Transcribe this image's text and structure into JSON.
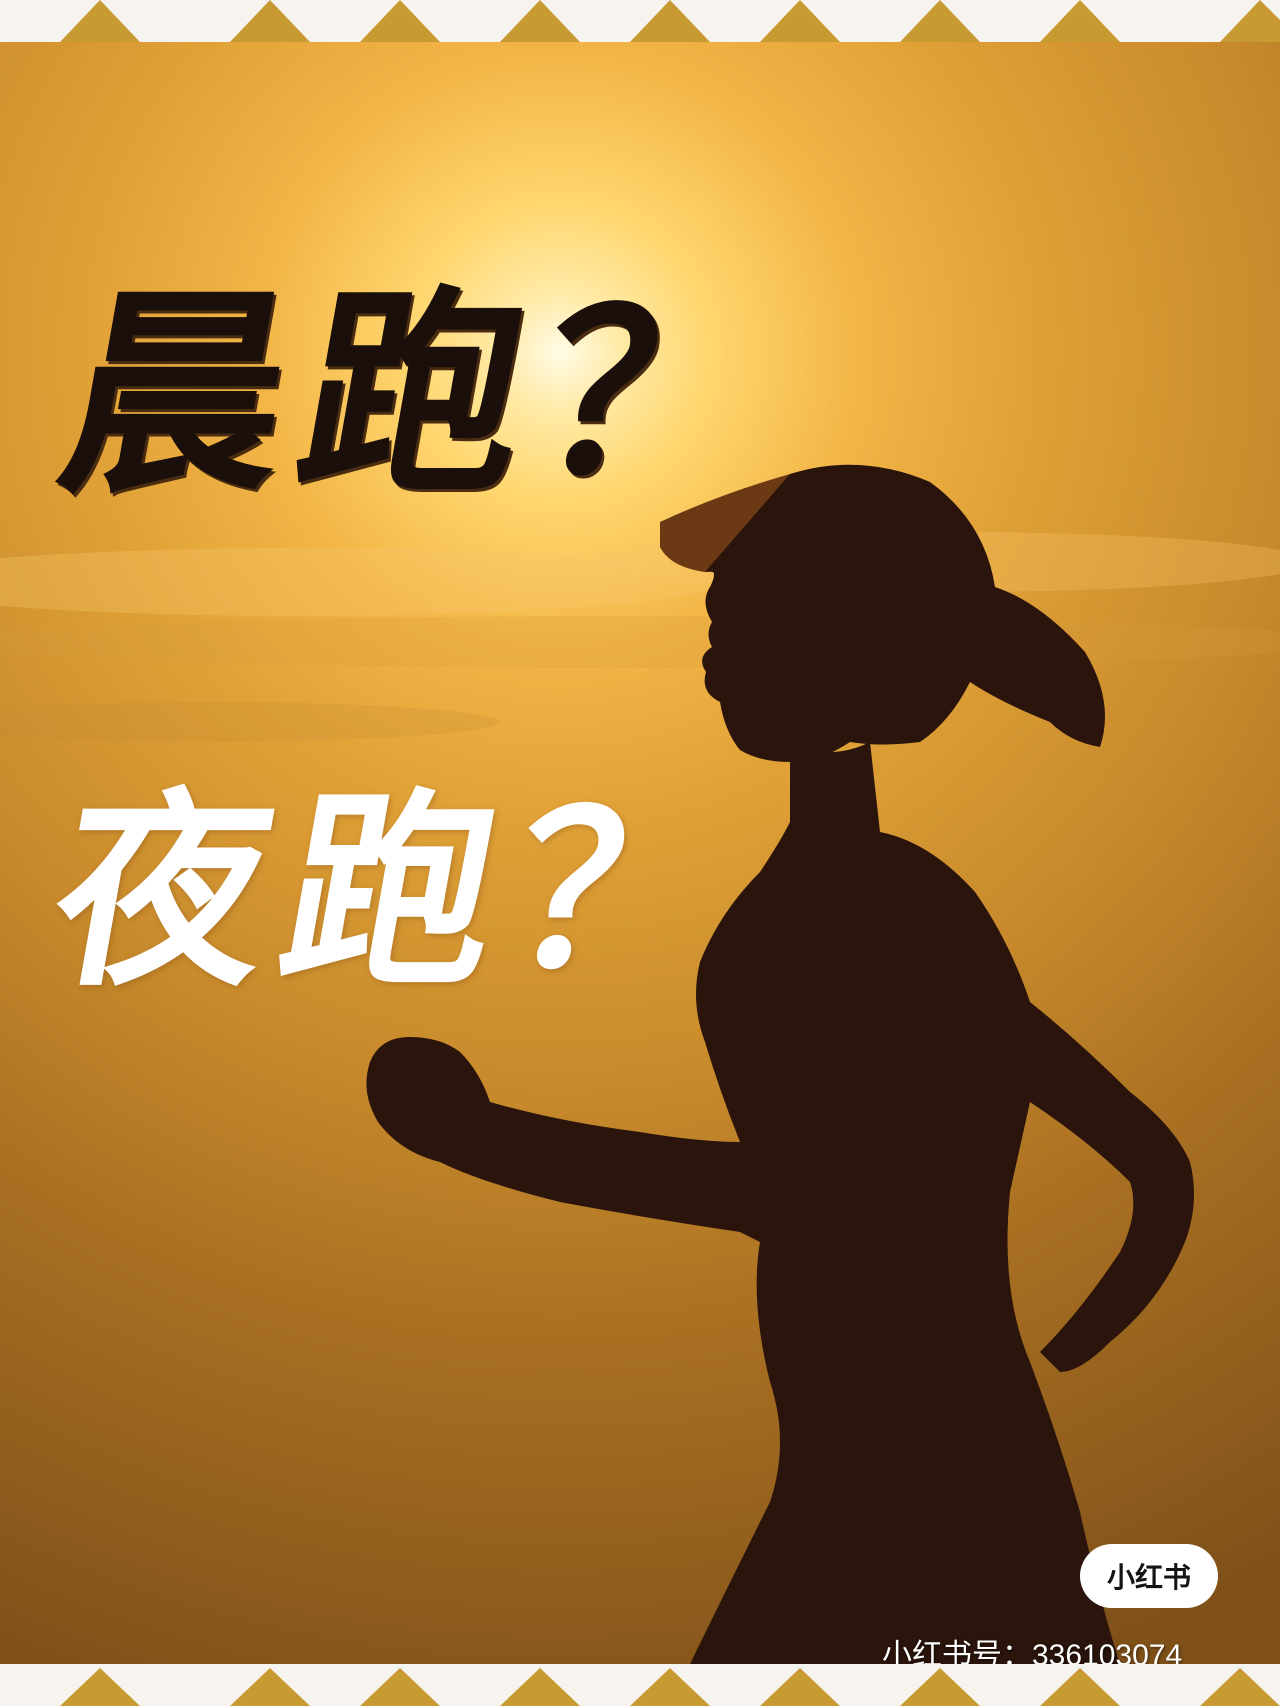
{
  "heading_morning": "晨跑？",
  "heading_night": "夜跑？",
  "logo_text": "小红书",
  "watermark": "小红书号：336103074",
  "colors": {
    "sky_glow": "#ffd66e",
    "sky_edge": "#7f5119",
    "silhouette": "#2a140b",
    "morning_text": "#1a0f0a",
    "night_text": "#ffffff",
    "border_gold": "#c79a32"
  },
  "icons": [
    "gold-triangle-icon"
  ]
}
